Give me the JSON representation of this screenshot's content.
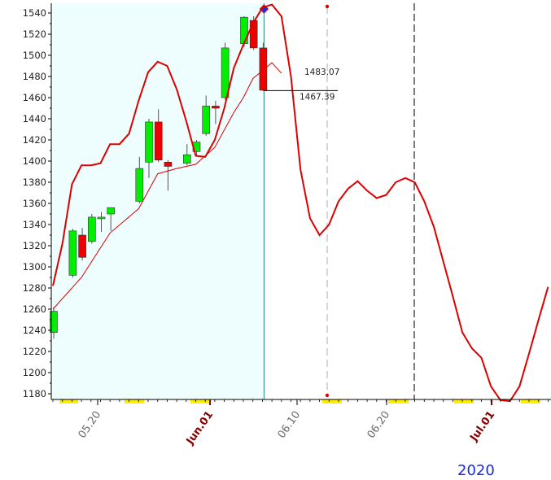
{
  "chart_data": {
    "type": "candlestick-with-projection",
    "title": "",
    "year_label": "2020",
    "ylim": [
      1174,
      1550
    ],
    "y_ticks": [
      1180,
      1200,
      1220,
      1240,
      1260,
      1280,
      1300,
      1320,
      1340,
      1360,
      1380,
      1400,
      1420,
      1440,
      1460,
      1480,
      1500,
      1520,
      1540
    ],
    "x_ticks": [
      {
        "label": "05.20",
        "day": 7,
        "kind": "date"
      },
      {
        "label": "Jun.01",
        "day": 15,
        "kind": "month"
      },
      {
        "label": "06.10",
        "day": 22,
        "kind": "date"
      },
      {
        "label": "06.20",
        "day": 30,
        "kind": "date"
      },
      {
        "label": "Jul.01",
        "day": 38,
        "kind": "month"
      }
    ],
    "candles": [
      {
        "day": 0,
        "open": 1238,
        "high": 1262,
        "low": 1232,
        "close": 1258
      },
      {
        "day": 2,
        "open": 1292,
        "high": 1336,
        "low": 1290,
        "close": 1334
      },
      {
        "day": 3,
        "open": 1330,
        "high": 1337,
        "low": 1306,
        "close": 1309
      },
      {
        "day": 4,
        "open": 1324,
        "high": 1350,
        "low": 1322,
        "close": 1347
      },
      {
        "day": 5,
        "open": 1347,
        "high": 1352,
        "low": 1333,
        "close": 1347
      },
      {
        "day": 6,
        "open": 1350,
        "high": 1356,
        "low": 1334,
        "close": 1356
      },
      {
        "day": 9,
        "open": 1362,
        "high": 1404,
        "low": 1360,
        "close": 1393
      },
      {
        "day": 10,
        "open": 1399,
        "high": 1440,
        "low": 1384,
        "close": 1437
      },
      {
        "day": 11,
        "open": 1437,
        "high": 1449,
        "low": 1399,
        "close": 1401
      },
      {
        "day": 12,
        "open": 1399,
        "high": 1401,
        "low": 1372,
        "close": 1395
      },
      {
        "day": 14,
        "open": 1398,
        "high": 1416,
        "low": 1396,
        "close": 1406
      },
      {
        "day": 15,
        "open": 1409,
        "high": 1420,
        "low": 1404,
        "close": 1418
      },
      {
        "day": 16,
        "open": 1426,
        "high": 1462,
        "low": 1424,
        "close": 1452
      },
      {
        "day": 17,
        "open": 1452,
        "high": 1457,
        "low": 1435,
        "close": 1450
      },
      {
        "day": 18,
        "open": 1460,
        "high": 1512,
        "low": 1458,
        "close": 1507
      },
      {
        "day": 20,
        "open": 1511,
        "high": 1537,
        "low": 1508,
        "close": 1536
      },
      {
        "day": 21,
        "open": 1533,
        "high": 1537,
        "low": 1505,
        "close": 1507
      },
      {
        "day": 22,
        "open": 1507,
        "high": 1512,
        "low": 1466,
        "close": 1467
      }
    ],
    "projection_line": [
      [
        0,
        1282
      ],
      [
        1,
        1322
      ],
      [
        2,
        1378
      ],
      [
        3,
        1396
      ],
      [
        4,
        1396
      ],
      [
        5,
        1398
      ],
      [
        6,
        1416
      ],
      [
        7,
        1416
      ],
      [
        8,
        1426
      ],
      [
        9,
        1457
      ],
      [
        10,
        1484
      ],
      [
        11,
        1494
      ],
      [
        12,
        1490
      ],
      [
        13,
        1468
      ],
      [
        14,
        1438
      ],
      [
        15,
        1405
      ],
      [
        16,
        1404
      ],
      [
        17,
        1420
      ],
      [
        18,
        1450
      ],
      [
        19,
        1488
      ],
      [
        20,
        1510
      ],
      [
        21,
        1530
      ],
      [
        22,
        1545
      ],
      [
        23,
        1548
      ],
      [
        24,
        1537
      ],
      [
        25,
        1480
      ],
      [
        26,
        1392
      ],
      [
        27,
        1346
      ],
      [
        28,
        1330
      ],
      [
        29,
        1340
      ],
      [
        30,
        1362
      ],
      [
        31,
        1374
      ],
      [
        32,
        1381
      ],
      [
        33,
        1372
      ],
      [
        34,
        1365
      ],
      [
        35,
        1368
      ],
      [
        36,
        1380
      ],
      [
        37,
        1384
      ],
      [
        38,
        1380
      ],
      [
        39,
        1362
      ],
      [
        40,
        1338
      ],
      [
        41,
        1305
      ],
      [
        42,
        1272
      ],
      [
        43,
        1238
      ],
      [
        44,
        1223
      ],
      [
        45,
        1214
      ],
      [
        46,
        1187
      ],
      [
        47,
        1174
      ],
      [
        48,
        1173
      ],
      [
        49,
        1187
      ],
      [
        50,
        1218
      ],
      [
        51,
        1250
      ],
      [
        52,
        1281
      ]
    ],
    "support_line": [
      [
        0,
        1260
      ],
      [
        3,
        1290
      ],
      [
        6,
        1332
      ],
      [
        9,
        1355
      ],
      [
        11,
        1388
      ],
      [
        13,
        1393
      ],
      [
        15,
        1397
      ],
      [
        17,
        1413
      ],
      [
        19,
        1446
      ],
      [
        20,
        1460
      ],
      [
        21,
        1478
      ],
      [
        23,
        1493
      ],
      [
        24,
        1483
      ]
    ],
    "annotations": [
      {
        "label": "1483.07",
        "value": 1483.07
      },
      {
        "label": "1467.39",
        "value": 1467.39
      }
    ],
    "shaded_history": true,
    "colors": {
      "up_candle": "#00ee00",
      "down_candle": "#ee0000",
      "projection": "#dd0000",
      "history_bg": "#eefdfd",
      "marker": "#1a30d6",
      "highlight": "#ffee00",
      "year": "#1a2bd6"
    }
  }
}
